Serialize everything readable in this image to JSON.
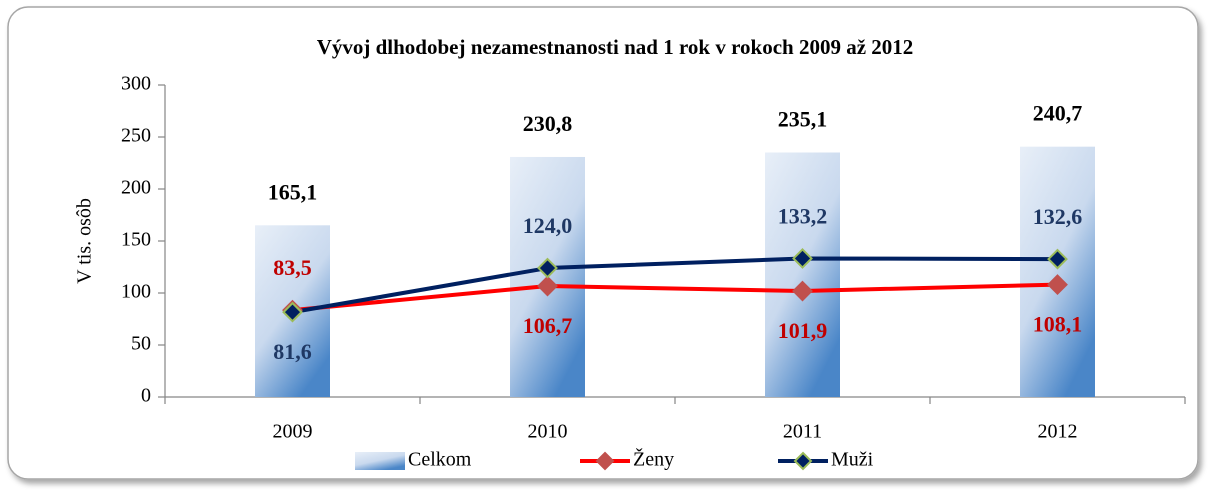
{
  "chart_data": {
    "type": "bar_line",
    "title": "Vývoj dlhodobej  nezamestnanosti nad 1 rok v rokoch 2009 až 2012",
    "y_label": "V tis. osôb",
    "categories": [
      "2009",
      "2010",
      "2011",
      "2012"
    ],
    "series": [
      {
        "name": "Celkom",
        "type": "bar",
        "color": "#4a86c8",
        "label_color": "#000000",
        "values": [
          165.1,
          230.8,
          235.1,
          240.7
        ],
        "value_labels": [
          "165,1",
          "230,8",
          "235,1",
          "240,7"
        ]
      },
      {
        "name": "Ženy",
        "type": "line",
        "color": "#ff0000",
        "marker_color": "#c0504d",
        "label_color": "#c00000",
        "values": [
          83.5,
          106.7,
          101.9,
          108.1
        ],
        "value_labels": [
          "83,5",
          "106,7",
          "101,9",
          "108,1"
        ]
      },
      {
        "name": "Muži",
        "type": "line",
        "color": "#002060",
        "marker_color": "#002060",
        "label_color": "#1f3864",
        "values": [
          81.6,
          124.0,
          133.2,
          132.6
        ],
        "value_labels": [
          "81,6",
          "124,0",
          "133,2",
          "132,6"
        ]
      }
    ],
    "ylim": [
      0,
      300
    ],
    "yticks": [
      0,
      50,
      100,
      150,
      200,
      250,
      300
    ],
    "grid": false,
    "legend": "bottom"
  }
}
